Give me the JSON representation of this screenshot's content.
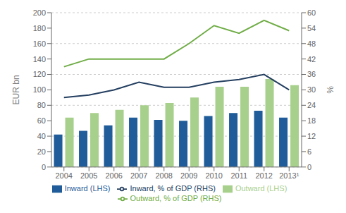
{
  "chart_data": {
    "type": "bar",
    "categories": [
      "2004",
      "2005",
      "2006",
      "2007",
      "2008",
      "2009",
      "2010",
      "2011",
      "2012",
      "2013¹"
    ],
    "series": [
      {
        "name": "Inward (LHS)",
        "type": "bar",
        "color": "#1F5C99",
        "values": [
          42,
          47,
          54,
          64,
          61,
          60,
          66,
          70,
          73,
          64
        ]
      },
      {
        "name": "Outward (LHS)",
        "type": "bar",
        "color": "#A8D08D",
        "values": [
          64,
          70,
          74,
          80,
          83,
          90,
          104,
          104,
          114,
          106
        ]
      },
      {
        "name": "Inward, % of GDP (RHS)",
        "type": "line",
        "axis": "y2",
        "color": "#243F60",
        "values": [
          27,
          28,
          30,
          33,
          31,
          31,
          33,
          34,
          36,
          30
        ]
      },
      {
        "name": "Outward, % of GDP (RHS)",
        "type": "line",
        "axis": "y2",
        "color": "#70AD47",
        "values": [
          39,
          42,
          42,
          42,
          42,
          48,
          55,
          52,
          57,
          53
        ]
      }
    ],
    "ylim": [
      0,
      200
    ],
    "yticks": [
      0,
      20,
      40,
      60,
      80,
      100,
      120,
      140,
      160,
      180,
      200
    ],
    "y2lim": [
      0,
      60
    ],
    "y2ticks": [
      0,
      6,
      12,
      18,
      24,
      30,
      36,
      42,
      48,
      54,
      60
    ],
    "y_label": "EUR bn",
    "y2_label": "%",
    "grid": true,
    "legend": "bottom"
  }
}
